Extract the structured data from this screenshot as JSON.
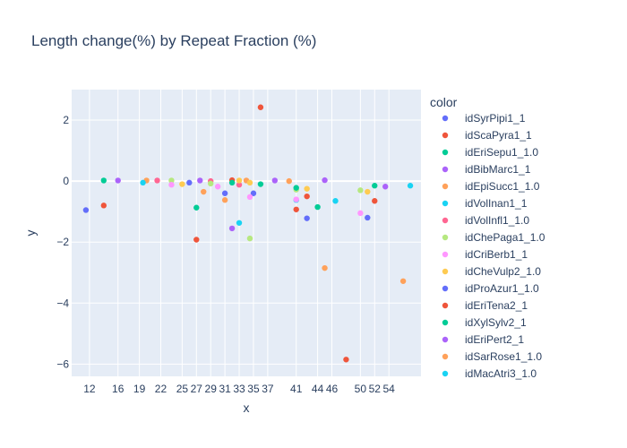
{
  "chart_data": {
    "type": "scatter",
    "title": "Length change(%) by Repeat Fraction (%)",
    "xlabel": "x",
    "ylabel": "y",
    "xlim": [
      9.5,
      58.5
    ],
    "ylim": [
      -6.4,
      3.0
    ],
    "x_ticks": [
      12,
      16,
      19,
      22,
      25,
      27,
      29,
      31,
      33,
      35,
      37,
      41,
      44,
      46,
      50,
      52,
      54
    ],
    "x_tick_labels": [
      "12",
      "16",
      "19",
      "22",
      "25",
      "27",
      "29",
      "31",
      "33",
      "35",
      "37",
      "41",
      "44",
      "46",
      "50",
      "52",
      "54"
    ],
    "y_ticks": [
      2,
      0,
      -2,
      -4,
      -6
    ],
    "y_tick_labels": [
      "2",
      "0",
      "−2",
      "−4",
      "−6"
    ],
    "legend_title": "color",
    "legend_position": "right",
    "series": [
      {
        "name": "idSyrPipi1_1",
        "color": "#636efa",
        "points": [
          [
            11.5,
            -0.95
          ],
          [
            26,
            -0.05
          ],
          [
            31,
            -0.4
          ],
          [
            35,
            -0.4
          ],
          [
            42.5,
            -1.22
          ],
          [
            51,
            -1.2
          ]
        ]
      },
      {
        "name": "idScaPyra1_1",
        "color": "#ef553b",
        "points": [
          [
            14,
            -0.8
          ],
          [
            27,
            -1.92
          ],
          [
            32,
            0.03
          ],
          [
            36,
            2.42
          ],
          [
            41,
            -0.93
          ],
          [
            42.5,
            -0.5
          ],
          [
            48,
            -5.85
          ],
          [
            52,
            -0.65
          ]
        ]
      },
      {
        "name": "idEriSepu1_1.0",
        "color": "#00cc96",
        "points": [
          [
            14,
            0.02
          ],
          [
            27,
            -0.87
          ],
          [
            32,
            -0.05
          ],
          [
            36,
            -0.1
          ],
          [
            44,
            -0.85
          ]
        ]
      },
      {
        "name": "idBibMarc1_1",
        "color": "#ab63fa",
        "points": [
          [
            16,
            0.02
          ],
          [
            27.5,
            0.02
          ],
          [
            32,
            -1.55
          ],
          [
            38,
            0.02
          ],
          [
            45,
            0.03
          ]
        ]
      },
      {
        "name": "idEpiSucc1_1.0",
        "color": "#ffa15a",
        "points": [
          [
            20,
            0.02
          ],
          [
            28,
            -0.35
          ],
          [
            31,
            -0.62
          ],
          [
            34,
            0.02
          ],
          [
            40,
            0.0
          ],
          [
            45,
            -2.85
          ],
          [
            56,
            -3.28
          ]
        ]
      },
      {
        "name": "idVolInan1_1",
        "color": "#19d3f3",
        "points": [
          [
            19.5,
            -0.05
          ],
          [
            33,
            -1.37
          ],
          [
            41,
            -0.62
          ],
          [
            46.5,
            -0.65
          ]
        ]
      },
      {
        "name": "idVolInfl1_1.0",
        "color": "#ff6692",
        "points": [
          [
            21.5,
            0.02
          ],
          [
            29,
            0.0
          ],
          [
            33,
            -0.12
          ]
        ]
      },
      {
        "name": "idChePaga1_1.0",
        "color": "#b6e880",
        "points": [
          [
            23.5,
            0.02
          ],
          [
            29,
            -0.08
          ],
          [
            34.5,
            -1.88
          ],
          [
            41,
            -0.28
          ],
          [
            50,
            -0.3
          ]
        ]
      },
      {
        "name": "idCriBerb1_1",
        "color": "#ff97ff",
        "points": [
          [
            23.5,
            -0.12
          ],
          [
            30,
            -0.18
          ],
          [
            34.5,
            -0.52
          ],
          [
            41,
            -0.6
          ],
          [
            50,
            -1.05
          ]
        ]
      },
      {
        "name": "idCheVulp2_1.0",
        "color": "#fecb52",
        "points": [
          [
            25,
            -0.1
          ],
          [
            33,
            0.02
          ],
          [
            34.5,
            -0.05
          ],
          [
            42.5,
            -0.25
          ],
          [
            51,
            -0.35
          ]
        ]
      },
      {
        "name": "idProAzur1_1.0",
        "color": "#636efa",
        "points": []
      },
      {
        "name": "idEriTena2_1",
        "color": "#ef553b",
        "points": []
      },
      {
        "name": "idXylSylv2_1",
        "color": "#00cc96",
        "points": [
          [
            41,
            -0.22
          ],
          [
            52,
            -0.15
          ]
        ]
      },
      {
        "name": "idEriPert2_1",
        "color": "#ab63fa",
        "points": [
          [
            53.5,
            -0.18
          ]
        ]
      },
      {
        "name": "idSarRose1_1.0",
        "color": "#ffa15a",
        "points": []
      },
      {
        "name": "idMacAtri3_1.0",
        "color": "#19d3f3",
        "points": [
          [
            57,
            -0.15
          ]
        ]
      }
    ]
  }
}
